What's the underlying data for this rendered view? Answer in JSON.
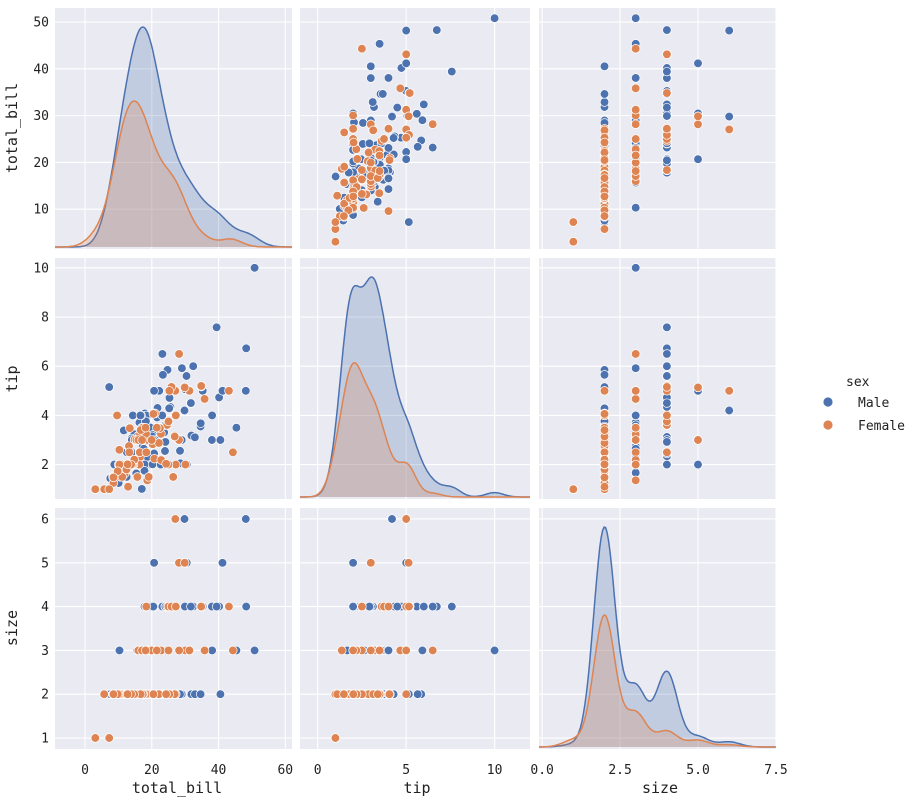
{
  "chart_data": {
    "type": "scatter",
    "kind": "pairplot",
    "variables": [
      "total_bill",
      "tip",
      "size"
    ],
    "hue_title": "sex",
    "hue_levels": [
      "Male",
      "Female"
    ],
    "colors": {
      "Male": "#4c72b0",
      "Female": "#dd8452",
      "panel_bg": "#eaeaf2",
      "grid": "#ffffff"
    },
    "legend_position": "right",
    "grid": true,
    "axes": {
      "total_bill": {
        "range": [
          -9,
          62
        ],
        "ticks": [
          0,
          20,
          40,
          60
        ],
        "tick_labels": [
          "0",
          "20",
          "40",
          "60"
        ],
        "row_ticks": [
          10,
          20,
          30,
          40,
          50
        ]
      },
      "tip": {
        "range": [
          -1,
          12
        ],
        "ticks": [
          0,
          5,
          10
        ],
        "tick_labels": [
          "0",
          "5",
          "10"
        ],
        "row_range": [
          0.6,
          10.4
        ],
        "row_ticks": [
          2,
          4,
          6,
          8,
          10
        ]
      },
      "size": {
        "range": [
          -0.1,
          7.5
        ],
        "ticks": [
          0.0,
          2.5,
          5.0,
          7.5
        ],
        "tick_labels": [
          "0.0",
          "2.5",
          "5.0",
          "7.5"
        ],
        "row_range": [
          0.75,
          6.25
        ],
        "row_ticks": [
          1,
          2,
          3,
          4,
          5,
          6
        ]
      }
    },
    "total_bill_row_range": [
      1.5,
      53
    ],
    "kde_peaks": {
      "total_bill": {
        "Male": 50.5,
        "Female": 33.5
      },
      "tip": {
        "Male": 10.0,
        "Female": 6.1
      },
      "size": {
        "Male": 6.0,
        "Female": 3.6
      }
    },
    "points": {
      "Male": [
        [
          16.99,
          1.01,
          2
        ],
        [
          10.34,
          1.66,
          3
        ],
        [
          21.01,
          3.5,
          3
        ],
        [
          23.68,
          3.31,
          2
        ],
        [
          25.29,
          4.71,
          4
        ],
        [
          8.77,
          2,
          2
        ],
        [
          26.88,
          3.12,
          4
        ],
        [
          15.04,
          1.96,
          2
        ],
        [
          14.78,
          3.23,
          2
        ],
        [
          10.27,
          1.71,
          2
        ],
        [
          35.26,
          5,
          4
        ],
        [
          15.42,
          1.57,
          2
        ],
        [
          18.43,
          3,
          4
        ],
        [
          21.58,
          3.92,
          2
        ],
        [
          10.33,
          1.67,
          3
        ],
        [
          16.29,
          3.71,
          3
        ],
        [
          16.97,
          3.5,
          3
        ],
        [
          20.65,
          3.35,
          3
        ],
        [
          17.92,
          4.08,
          2
        ],
        [
          39.42,
          7.58,
          4
        ],
        [
          19.82,
          3.18,
          2
        ],
        [
          17.81,
          2.34,
          4
        ],
        [
          13.37,
          2,
          2
        ],
        [
          12.69,
          2,
          2
        ],
        [
          21.7,
          4.3,
          2
        ],
        [
          19.65,
          3,
          2
        ],
        [
          9.55,
          1.45,
          2
        ],
        [
          18.35,
          2.5,
          4
        ],
        [
          15.06,
          3,
          2
        ],
        [
          20.69,
          2.45,
          4
        ],
        [
          17.78,
          3.27,
          2
        ],
        [
          24.06,
          3.6,
          3
        ],
        [
          16.31,
          2,
          3
        ],
        [
          16.93,
          3.07,
          3
        ],
        [
          18.69,
          2.31,
          3
        ],
        [
          31.27,
          5,
          3
        ],
        [
          16.04,
          2.24,
          3
        ],
        [
          17.46,
          2.54,
          2
        ],
        [
          13.94,
          3.06,
          2
        ],
        [
          9.68,
          1.32,
          2
        ],
        [
          30.4,
          5.6,
          4
        ],
        [
          18.29,
          3,
          2
        ],
        [
          22.23,
          5,
          2
        ],
        [
          32.4,
          6,
          4
        ],
        [
          28.55,
          2.05,
          3
        ],
        [
          18.04,
          3,
          2
        ],
        [
          12.54,
          2.5,
          2
        ],
        [
          9.94,
          1.56,
          2
        ],
        [
          25.56,
          4.34,
          4
        ],
        [
          19.49,
          3.51,
          2
        ],
        [
          38.07,
          4,
          3
        ],
        [
          23.95,
          2.55,
          2
        ],
        [
          29.93,
          5.07,
          4
        ],
        [
          14.07,
          2.5,
          2
        ],
        [
          13.13,
          2,
          2
        ],
        [
          17.26,
          2.74,
          3
        ],
        [
          24.55,
          2,
          4
        ],
        [
          19.77,
          2,
          4
        ],
        [
          48.17,
          5,
          6
        ],
        [
          16.58,
          4,
          2
        ],
        [
          7.56,
          1.44,
          2
        ],
        [
          10.34,
          2,
          2
        ],
        [
          43.11,
          5,
          4
        ],
        [
          13,
          2,
          2
        ],
        [
          13.51,
          2,
          2
        ],
        [
          18.71,
          4,
          3
        ],
        [
          12.74,
          2.01,
          2
        ],
        [
          20.27,
          2.83,
          2
        ],
        [
          11.17,
          1.5,
          2
        ],
        [
          34.81,
          5.2,
          4
        ],
        [
          24.59,
          3.61,
          4
        ],
        [
          25.21,
          4.29,
          2
        ],
        [
          18.24,
          3.76,
          2
        ],
        [
          14.31,
          4,
          2
        ],
        [
          14,
          3,
          2
        ],
        [
          38.01,
          3,
          4
        ],
        [
          26.41,
          1.5,
          2
        ],
        [
          11.24,
          1.76,
          2
        ],
        [
          48.27,
          6.73,
          4
        ],
        [
          20.29,
          3.21,
          2
        ],
        [
          13.81,
          2,
          2
        ],
        [
          11.02,
          1.98,
          2
        ],
        [
          18.29,
          3.76,
          4
        ],
        [
          17.59,
          2.64,
          3
        ],
        [
          20.08,
          3.15,
          3
        ],
        [
          16,
          2,
          2
        ],
        [
          34.83,
          5.17,
          4
        ],
        [
          13.03,
          2,
          2
        ],
        [
          18.28,
          4,
          2
        ],
        [
          24.71,
          5.85,
          2
        ],
        [
          21.16,
          3,
          2
        ],
        [
          28.97,
          3,
          2
        ],
        [
          22.49,
          3.5,
          2
        ],
        [
          40.17,
          4.73,
          4
        ],
        [
          27.28,
          4,
          2
        ],
        [
          12.03,
          1.5,
          2
        ],
        [
          21.01,
          3,
          2
        ],
        [
          12.46,
          1.5,
          2
        ],
        [
          15.36,
          1.64,
          2
        ],
        [
          20.49,
          4.06,
          2
        ],
        [
          25.21,
          4.29,
          2
        ],
        [
          18.24,
          3.76,
          2
        ],
        [
          7.25,
          5.15,
          2
        ],
        [
          31.85,
          3.18,
          2
        ],
        [
          16.82,
          4,
          2
        ],
        [
          32.9,
          3.11,
          2
        ],
        [
          17.89,
          2,
          2
        ],
        [
          14.48,
          2,
          2
        ],
        [
          34.63,
          3.55,
          2
        ],
        [
          34.65,
          3.68,
          4
        ],
        [
          23.33,
          5.65,
          2
        ],
        [
          45.35,
          3.5,
          3
        ],
        [
          23.17,
          6.5,
          4
        ],
        [
          40.55,
          3,
          2
        ],
        [
          20.69,
          5,
          5
        ],
        [
          30.46,
          2,
          5
        ],
        [
          23.1,
          4,
          3
        ],
        [
          15.69,
          1.5,
          2
        ],
        [
          28.44,
          2.56,
          2
        ],
        [
          15.48,
          2.02,
          2
        ],
        [
          16.58,
          4,
          2
        ],
        [
          7.56,
          1.44,
          2
        ],
        [
          50.81,
          10,
          3
        ],
        [
          15.81,
          3.16,
          2
        ],
        [
          7.25,
          1,
          1
        ],
        [
          31.71,
          4.5,
          4
        ],
        [
          20.45,
          3,
          4
        ],
        [
          13.28,
          2.72,
          2
        ],
        [
          24.01,
          2,
          4
        ],
        [
          15.69,
          3,
          3
        ],
        [
          11.61,
          3.39,
          2
        ],
        [
          10.77,
          1.47,
          2
        ],
        [
          15.53,
          3,
          2
        ],
        [
          10.07,
          1.25,
          2
        ],
        [
          20.23,
          2.01,
          2
        ],
        [
          39.4,
          7.58,
          4
        ],
        [
          29.03,
          5.92,
          3
        ],
        [
          24.08,
          2.92,
          4
        ],
        [
          28.15,
          3,
          5
        ],
        [
          41.19,
          5,
          5
        ],
        [
          29.8,
          4.2,
          6
        ],
        [
          19.44,
          3,
          2
        ],
        [
          22.67,
          2,
          2
        ],
        [
          17.82,
          1.75,
          2
        ]
      ],
      "Female": [
        [
          24.59,
          3.61,
          4
        ],
        [
          14.83,
          3.02,
          2
        ],
        [
          3.07,
          1,
          1
        ],
        [
          5.75,
          1,
          2
        ],
        [
          16.45,
          2.47,
          2
        ],
        [
          3.07,
          1,
          1
        ],
        [
          10.29,
          2.6,
          2
        ],
        [
          34.81,
          5.2,
          4
        ],
        [
          26.41,
          1.5,
          2
        ],
        [
          10.65,
          1.5,
          2
        ],
        [
          20.92,
          4.08,
          2
        ],
        [
          27.05,
          5,
          6
        ],
        [
          16.43,
          2.3,
          2
        ],
        [
          8.35,
          1.5,
          2
        ],
        [
          18.64,
          1.36,
          3
        ],
        [
          11.87,
          1.63,
          2
        ],
        [
          29.85,
          5.14,
          5
        ],
        [
          25,
          3.75,
          4
        ],
        [
          13.39,
          2.61,
          2
        ],
        [
          16.21,
          2,
          3
        ],
        [
          17.51,
          3,
          2
        ],
        [
          10.59,
          1.61,
          2
        ],
        [
          10.63,
          2,
          2
        ],
        [
          9.6,
          4,
          2
        ],
        [
          20.76,
          2.24,
          2
        ],
        [
          22.75,
          3.25,
          2
        ],
        [
          14.48,
          2,
          2
        ],
        [
          13.42,
          3.48,
          2
        ],
        [
          16.27,
          2.5,
          2
        ],
        [
          10.09,
          2,
          2
        ],
        [
          43.11,
          5,
          4
        ],
        [
          13,
          2,
          2
        ],
        [
          12.74,
          2.01,
          2
        ],
        [
          13,
          2,
          2
        ],
        [
          16.4,
          2.5,
          2
        ],
        [
          16.47,
          3.23,
          3
        ],
        [
          18.78,
          3,
          2
        ],
        [
          15.38,
          3,
          2
        ],
        [
          44.3,
          2.5,
          3
        ],
        [
          22.42,
          3.48,
          2
        ],
        [
          20.92,
          4.08,
          2
        ],
        [
          14.52,
          2,
          2
        ],
        [
          11.38,
          2,
          2
        ],
        [
          22.82,
          2.18,
          3
        ],
        [
          19.08,
          1.5,
          2
        ],
        [
          20.27,
          2.83,
          2
        ],
        [
          11.17,
          1.5,
          2
        ],
        [
          12.26,
          2,
          2
        ],
        [
          18.26,
          3.25,
          2
        ],
        [
          8.51,
          1.25,
          2
        ],
        [
          10.33,
          2,
          2
        ],
        [
          14.15,
          2,
          2
        ],
        [
          13.16,
          2.75,
          2
        ],
        [
          17.47,
          3.5,
          2
        ],
        [
          27.18,
          2,
          2
        ],
        [
          22.12,
          2.88,
          2
        ],
        [
          30.06,
          2,
          3
        ],
        [
          25.89,
          5.16,
          4
        ],
        [
          12.9,
          1.1,
          2
        ],
        [
          28.15,
          3,
          5
        ],
        [
          27.2,
          4,
          4
        ],
        [
          15.98,
          3,
          3
        ],
        [
          17.07,
          3,
          3
        ],
        [
          35.83,
          4.67,
          3
        ],
        [
          7.25,
          1,
          1
        ],
        [
          26.86,
          3.14,
          2
        ],
        [
          25.28,
          5,
          2
        ],
        [
          17.31,
          3.5,
          2
        ],
        [
          18.35,
          2.5,
          4
        ],
        [
          25,
          2,
          3
        ],
        [
          19.96,
          3,
          3
        ],
        [
          15.69,
          1.5,
          2
        ],
        [
          31.27,
          5,
          3
        ],
        [
          9.78,
          1.73,
          2
        ],
        [
          13.27,
          2.5,
          2
        ],
        [
          28.17,
          6.5,
          3
        ],
        [
          12.43,
          1.8,
          2
        ],
        [
          29.85,
          5.14,
          5
        ],
        [
          16.66,
          3.4,
          2
        ],
        [
          21.5,
          3.5,
          3
        ],
        [
          18.15,
          3.5,
          3
        ],
        [
          24.27,
          2.03,
          2
        ],
        [
          14.73,
          2.2,
          2
        ],
        [
          13.81,
          2,
          2
        ],
        [
          8.52,
          1.48,
          2
        ],
        [
          12.74,
          2.01,
          2
        ],
        [
          20.49,
          4.06,
          2
        ]
      ]
    }
  }
}
